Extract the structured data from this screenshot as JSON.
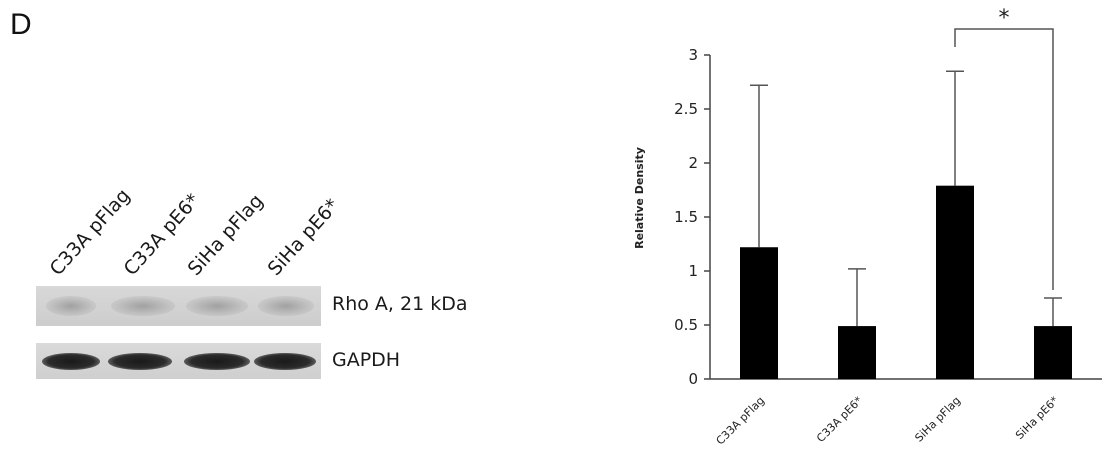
{
  "panel_label": "D",
  "western_blot": {
    "lanes": [
      "C33A pFlag",
      "C33A pE6*",
      "SiHa pFlag",
      "SiHa pE6*"
    ],
    "blots": [
      {
        "label": "Rho A, 21 kDa",
        "band_intensity": [
          0.45,
          0.35,
          0.45,
          0.25
        ]
      },
      {
        "label": "GAPDH",
        "band_intensity": [
          0.95,
          0.95,
          0.95,
          0.95
        ]
      }
    ]
  },
  "chart_data": {
    "type": "bar",
    "categories": [
      "C33A pFlag",
      "C33A pE6*",
      "SiHa pFlag",
      "SiHa pE6*"
    ],
    "values": [
      1.22,
      0.49,
      1.79,
      0.49
    ],
    "error_upper": [
      1.5,
      0.53,
      1.06,
      0.26
    ],
    "title": "",
    "xlabel": "",
    "ylabel": "Relative Density",
    "ylim": [
      0,
      3
    ],
    "yticks": [
      0,
      0.5,
      1,
      1.5,
      2,
      2.5,
      3
    ],
    "ytick_labels": [
      "0",
      "0.5",
      "1",
      "1.5",
      "2",
      "2.5",
      "3"
    ],
    "grid": false,
    "bar_color": "#000000",
    "significance": {
      "from": "SiHa pFlag",
      "to": "SiHa pE6*",
      "label": "*"
    }
  }
}
